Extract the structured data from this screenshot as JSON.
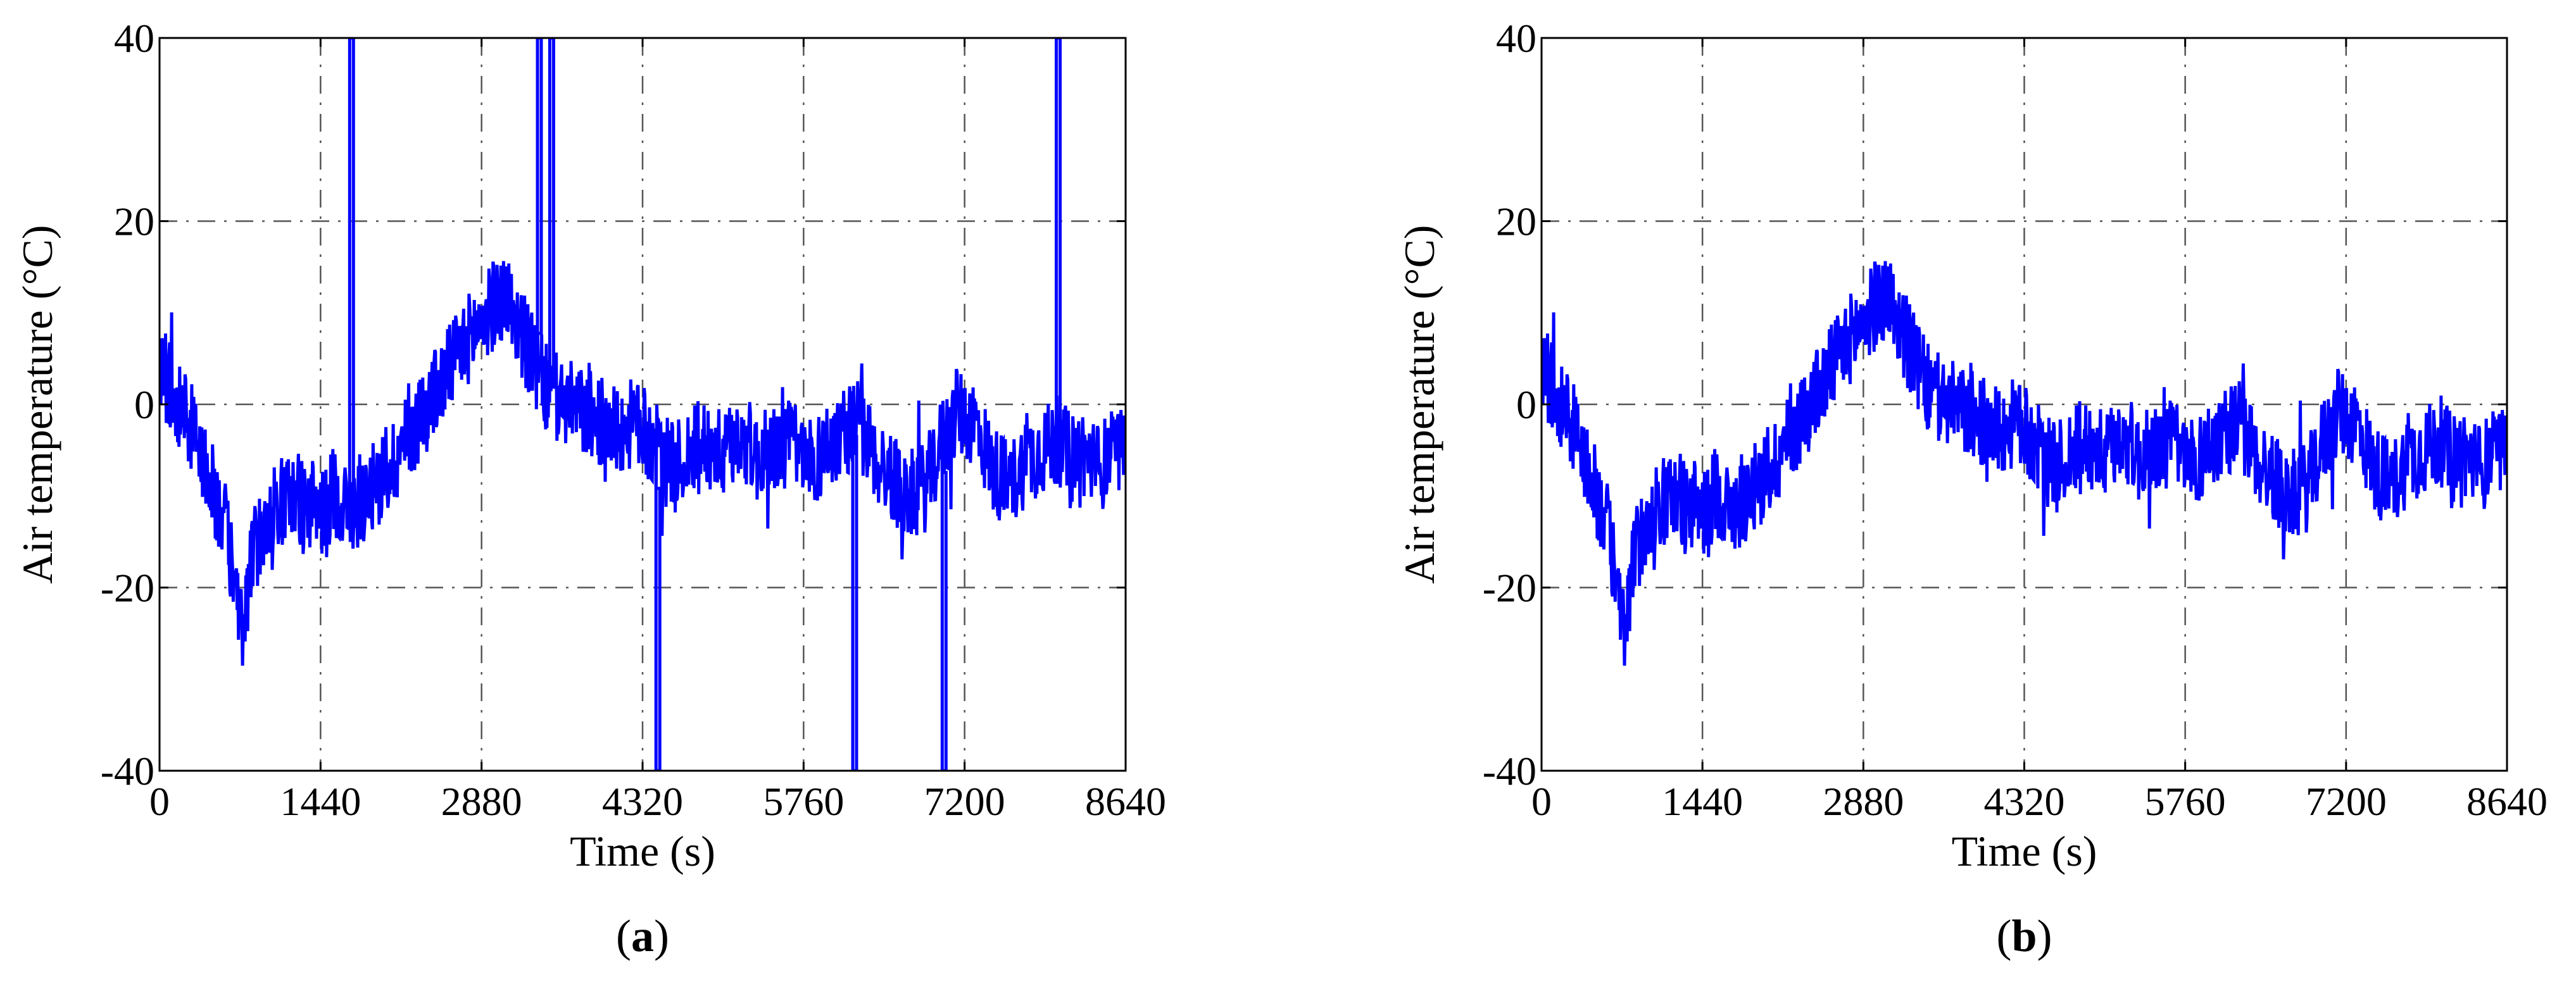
{
  "chart_data": [
    {
      "type": "line",
      "panel_label": "a",
      "xlabel": "Time (s)",
      "ylabel": "Air temperature (°C)",
      "xlim": [
        0,
        8640
      ],
      "ylim": [
        -40,
        40
      ],
      "xticks": [
        0,
        1440,
        2880,
        4320,
        5760,
        7200,
        8640
      ],
      "yticks": [
        -40,
        -20,
        0,
        20,
        40
      ],
      "grid": true,
      "line_color": "#0000ff",
      "series": [
        {
          "x": [
            0,
            150,
            300,
            450,
            600,
            700,
            760,
            800,
            900,
            1050,
            1200,
            1350,
            1500,
            1550,
            1600,
            1700,
            1850,
            2000,
            2150,
            2300,
            2450,
            2600,
            2750,
            2880,
            3000,
            3100,
            3200,
            3300,
            3400,
            3500,
            3650,
            3800,
            3950,
            4100,
            4250,
            4400,
            4500,
            4600,
            4750,
            4900,
            5050,
            5200,
            5350,
            5500,
            5650,
            5800,
            5950,
            6100,
            6250,
            6400,
            6550,
            6700,
            6850,
            7000,
            7150,
            7300,
            7450,
            7600,
            7750,
            7900,
            8050,
            8150,
            8250,
            8400,
            8550,
            8640
          ],
          "y": [
            4,
            1,
            -3,
            -8,
            -14,
            -22,
            -25,
            -18,
            -14,
            -11,
            -10,
            -11,
            -12,
            -9,
            -10,
            -12,
            -10,
            -8,
            -5,
            -2,
            1,
            4,
            7,
            9,
            11,
            12,
            9,
            6,
            3,
            1,
            0,
            -1,
            -2,
            -3,
            -2,
            -4,
            -6,
            -7,
            -5,
            -4,
            -6,
            -3,
            -6,
            -5,
            -4,
            -7,
            -5,
            -3,
            -2,
            -6,
            -8,
            -10,
            -9,
            -4,
            -1,
            -2,
            -7,
            -9,
            -6,
            -5,
            -4,
            -6,
            -5,
            -7,
            -5,
            -6
          ]
        }
      ],
      "spikes": [
        {
          "x": 1700,
          "y": 40
        },
        {
          "x": 3380,
          "y": 40
        },
        {
          "x": 3490,
          "y": 40
        },
        {
          "x": 4440,
          "y": -40
        },
        {
          "x": 6200,
          "y": -40
        },
        {
          "x": 7000,
          "y": -40
        },
        {
          "x": 8020,
          "y": 40
        }
      ]
    },
    {
      "type": "line",
      "panel_label": "b",
      "xlabel": "Time (s)",
      "ylabel": "Air temperature (°C)",
      "xlim": [
        0,
        8640
      ],
      "ylim": [
        -40,
        40
      ],
      "xticks": [
        0,
        1440,
        2880,
        4320,
        5760,
        7200,
        8640
      ],
      "yticks": [
        -40,
        -20,
        0,
        20,
        40
      ],
      "grid": true,
      "line_color": "#0000ff",
      "series": [
        {
          "x": [
            0,
            150,
            300,
            450,
            600,
            700,
            760,
            800,
            900,
            1050,
            1200,
            1350,
            1500,
            1550,
            1600,
            1700,
            1850,
            2000,
            2150,
            2300,
            2450,
            2600,
            2750,
            2880,
            3000,
            3100,
            3200,
            3300,
            3400,
            3500,
            3650,
            3800,
            3950,
            4100,
            4250,
            4400,
            4500,
            4600,
            4750,
            4900,
            5050,
            5200,
            5350,
            5500,
            5650,
            5800,
            5950,
            6100,
            6250,
            6400,
            6550,
            6700,
            6850,
            7000,
            7150,
            7300,
            7450,
            7600,
            7750,
            7900,
            8050,
            8150,
            8250,
            8400,
            8550,
            8640
          ],
          "y": [
            4,
            1,
            -3,
            -8,
            -14,
            -22,
            -25,
            -18,
            -14,
            -11,
            -10,
            -11,
            -12,
            -9,
            -10,
            -12,
            -10,
            -8,
            -5,
            -2,
            1,
            4,
            7,
            9,
            11,
            12,
            9,
            6,
            3,
            1,
            0,
            -1,
            -2,
            -3,
            -2,
            -4,
            -6,
            -7,
            -5,
            -4,
            -6,
            -3,
            -6,
            -5,
            -4,
            -7,
            -5,
            -3,
            -2,
            -6,
            -8,
            -10,
            -9,
            -4,
            -1,
            -2,
            -7,
            -9,
            -6,
            -5,
            -4,
            -6,
            -5,
            -7,
            -5,
            -6
          ]
        }
      ],
      "spikes": []
    }
  ]
}
